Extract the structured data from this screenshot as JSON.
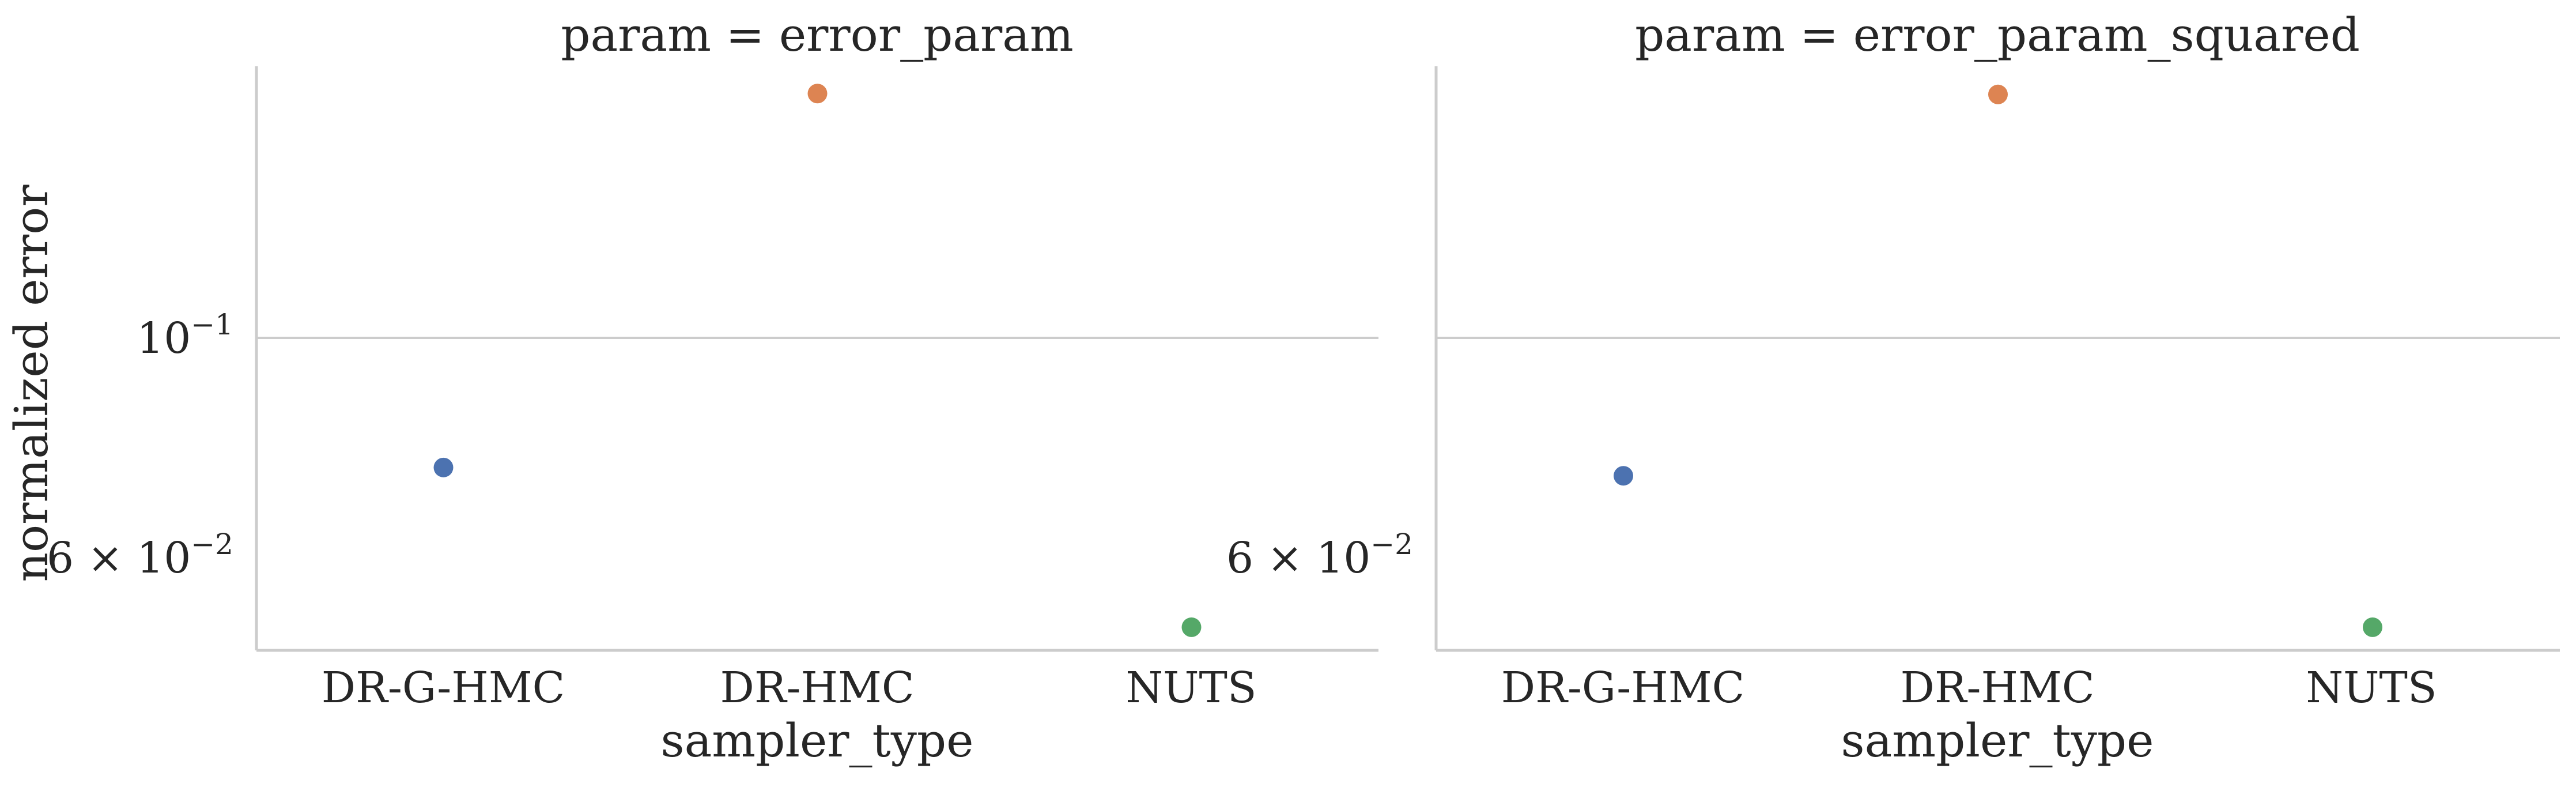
{
  "chart_data": {
    "type": "scatter",
    "ylabel": "normalized error",
    "yscale": "log",
    "ylim": [
      0.0524,
      0.1414
    ],
    "ytick_values": [
      0.1,
      0.06
    ],
    "ytick_labels": [
      {
        "base": "10",
        "exp": "−1"
      },
      {
        "mantissa": "6 × 10",
        "exp": "−2"
      }
    ],
    "grid": "horizontal",
    "categories": [
      "DR-G-HMC",
      "DR-HMC",
      "NUTS"
    ],
    "colors": {
      "DR-G-HMC": "#4c72b0",
      "DR-HMC": "#dd8452",
      "NUTS": "#55a868"
    },
    "panels": [
      {
        "title": "param = error_param",
        "xlabel": "sampler_type",
        "values": [
          0.0715,
          0.135,
          0.0545
        ]
      },
      {
        "title": "param = error_param_squared",
        "xlabel": "sampler_type",
        "values": [
          0.0705,
          0.1348,
          0.0545
        ]
      }
    ]
  }
}
